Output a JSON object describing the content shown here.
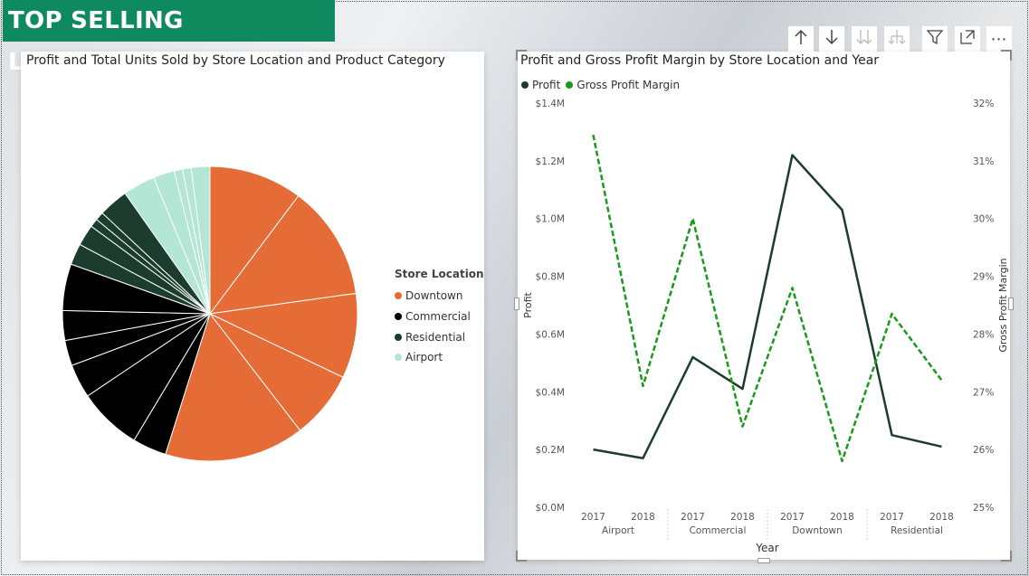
{
  "page_title": "TOP SELLING LOCATIONS",
  "toolbar": {
    "drill_up_icon": "arrow-up-icon",
    "drill_down_icon": "arrow-down-icon",
    "next_level_icon": "double-arrow-down-icon",
    "expand_hierarchy_icon": "fork-down-icon",
    "filter_icon": "filter-icon",
    "focus_mode_icon": "focus-mode-icon",
    "more_options": "⋯"
  },
  "colors": {
    "downtown": "#e66c37",
    "commercial": "#000000",
    "residential": "#1c3c2e",
    "airport": "#b3e6d4",
    "profit_line": "#1c3c2e",
    "margin_line": "#1a9a1a",
    "title_bg": "#0f8a5f"
  },
  "chart_data": [
    {
      "type": "pie",
      "title": "Profit and Total Units Sold by Store Location and Product Category",
      "legend_title": "Store Location",
      "legend_position": "right",
      "legend": [
        "Downtown",
        "Commercial",
        "Residential",
        "Airport"
      ],
      "slices": [
        {
          "location": "Downtown",
          "value": 11.0
        },
        {
          "location": "Downtown",
          "value": 13.5
        },
        {
          "location": "Downtown",
          "value": 10.0
        },
        {
          "location": "Downtown",
          "value": 8.0
        },
        {
          "location": "Downtown",
          "value": 16.5
        },
        {
          "location": "Commercial",
          "value": 4.0
        },
        {
          "location": "Commercial",
          "value": 7.5
        },
        {
          "location": "Commercial",
          "value": 4.0
        },
        {
          "location": "Commercial",
          "value": 3.0
        },
        {
          "location": "Commercial",
          "value": 3.5
        },
        {
          "location": "Commercial",
          "value": 5.5
        },
        {
          "location": "Residential",
          "value": 2.5
        },
        {
          "location": "Residential",
          "value": 2.5
        },
        {
          "location": "Residential",
          "value": 1.0
        },
        {
          "location": "Residential",
          "value": 1.0
        },
        {
          "location": "Residential",
          "value": 3.5
        },
        {
          "location": "Airport",
          "value": 3.8
        },
        {
          "location": "Airport",
          "value": 2.5
        },
        {
          "location": "Airport",
          "value": 1.0
        },
        {
          "location": "Airport",
          "value": 1.0
        },
        {
          "location": "Airport",
          "value": 2.2
        }
      ]
    },
    {
      "type": "line",
      "title": "Profit and Gross Profit Margin by Store Location and Year",
      "xlabel": "Year",
      "ylabel": "Profit",
      "y2label": "Gross Profit Margin",
      "legend_position": "top-left",
      "x_years": [
        "2017",
        "2018",
        "2017",
        "2018",
        "2017",
        "2018",
        "2017",
        "2018"
      ],
      "x_groups": [
        "Airport",
        "Commercial",
        "Downtown",
        "Residential"
      ],
      "y_ticks": [
        "$0.0M",
        "$0.2M",
        "$0.4M",
        "$0.6M",
        "$0.8M",
        "$1.0M",
        "$1.2M",
        "$1.4M"
      ],
      "y2_ticks": [
        "25%",
        "26%",
        "27%",
        "28%",
        "29%",
        "30%",
        "31%",
        "32%"
      ],
      "ylim": [
        0,
        1.4
      ],
      "y2lim": [
        25,
        32
      ],
      "series": [
        {
          "name": "Profit",
          "axis": "left",
          "style": "solid",
          "values": [
            0.2,
            0.17,
            0.52,
            0.41,
            1.22,
            1.03,
            0.25,
            0.21
          ]
        },
        {
          "name": "Gross Profit Margin",
          "axis": "right",
          "style": "dashed",
          "values": [
            31.45,
            27.1,
            30.0,
            26.4,
            28.8,
            25.8,
            28.35,
            27.2
          ]
        }
      ],
      "grid": false
    }
  ]
}
